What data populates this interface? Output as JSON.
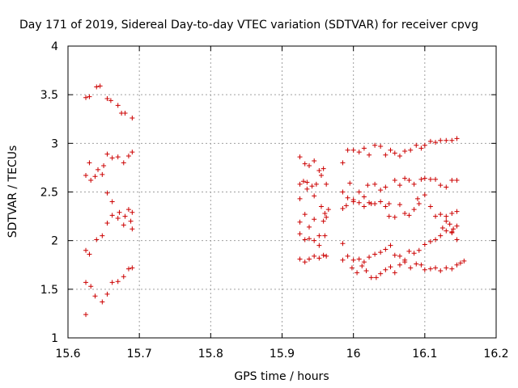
{
  "chart_data": {
    "type": "scatter",
    "title": "Day 171 of 2019, Sidereal Day-to-day VTEC variation (SDTVAR) for receiver cpvg",
    "xlabel": "GPS time / hours",
    "ylabel": "SDTVAR / TECUs",
    "xlim": [
      15.6,
      16.2
    ],
    "ylim": [
      1,
      4
    ],
    "xticks": [
      15.6,
      15.7,
      15.8,
      15.9,
      16.0,
      16.1,
      16.2
    ],
    "xtick_labels": [
      "15.6",
      "15.7",
      "15.8",
      "15.9",
      "16",
      "16.1",
      "16.2"
    ],
    "yticks": [
      1,
      1.5,
      2,
      2.5,
      3,
      3.5,
      4
    ],
    "ytick_labels": [
      "1",
      "1.5",
      "2",
      "2.5",
      "3",
      "3.5",
      "4"
    ],
    "grid": true,
    "marker": "+",
    "color": "#cc0000",
    "series": [
      {
        "name": "SDTVAR",
        "points": [
          [
            15.625,
            3.47
          ],
          [
            15.63,
            3.48
          ],
          [
            15.64,
            3.58
          ],
          [
            15.645,
            3.59
          ],
          [
            15.655,
            3.46
          ],
          [
            15.66,
            3.44
          ],
          [
            15.67,
            3.39
          ],
          [
            15.675,
            3.31
          ],
          [
            15.68,
            3.31
          ],
          [
            15.69,
            3.26
          ],
          [
            15.625,
            2.67
          ],
          [
            15.63,
            2.8
          ],
          [
            15.632,
            2.62
          ],
          [
            15.638,
            2.66
          ],
          [
            15.642,
            2.73
          ],
          [
            15.648,
            2.68
          ],
          [
            15.65,
            2.77
          ],
          [
            15.655,
            2.89
          ],
          [
            15.662,
            2.85
          ],
          [
            15.67,
            2.86
          ],
          [
            15.678,
            2.8
          ],
          [
            15.685,
            2.87
          ],
          [
            15.69,
            2.91
          ],
          [
            15.655,
            2.49
          ],
          [
            15.662,
            2.4
          ],
          [
            15.655,
            2.18
          ],
          [
            15.662,
            2.26
          ],
          [
            15.67,
            2.23
          ],
          [
            15.672,
            2.29
          ],
          [
            15.678,
            2.16
          ],
          [
            15.68,
            2.25
          ],
          [
            15.685,
            2.32
          ],
          [
            15.688,
            2.2
          ],
          [
            15.69,
            2.29
          ],
          [
            15.69,
            2.12
          ],
          [
            15.64,
            2.01
          ],
          [
            15.648,
            2.05
          ],
          [
            15.625,
            1.9
          ],
          [
            15.63,
            1.86
          ],
          [
            15.625,
            1.57
          ],
          [
            15.632,
            1.53
          ],
          [
            15.638,
            1.43
          ],
          [
            15.648,
            1.37
          ],
          [
            15.655,
            1.45
          ],
          [
            15.662,
            1.57
          ],
          [
            15.67,
            1.58
          ],
          [
            15.678,
            1.63
          ],
          [
            15.685,
            1.71
          ],
          [
            15.69,
            1.72
          ],
          [
            15.625,
            1.24
          ],
          [
            15.925,
            2.86
          ],
          [
            15.932,
            2.79
          ],
          [
            15.938,
            2.77
          ],
          [
            15.945,
            2.82
          ],
          [
            15.952,
            2.72
          ],
          [
            15.958,
            2.74
          ],
          [
            15.985,
            2.8
          ],
          [
            15.992,
            2.93
          ],
          [
            16.0,
            2.93
          ],
          [
            16.008,
            2.91
          ],
          [
            16.015,
            2.95
          ],
          [
            16.022,
            2.88
          ],
          [
            16.03,
            2.98
          ],
          [
            16.038,
            2.97
          ],
          [
            16.045,
            2.88
          ],
          [
            16.052,
            2.93
          ],
          [
            16.058,
            2.9
          ],
          [
            16.065,
            2.87
          ],
          [
            16.072,
            2.92
          ],
          [
            16.08,
            2.93
          ],
          [
            16.088,
            2.98
          ],
          [
            16.095,
            2.95
          ],
          [
            16.1,
            2.98
          ],
          [
            16.108,
            3.02
          ],
          [
            16.115,
            3.01
          ],
          [
            16.122,
            3.03
          ],
          [
            16.13,
            3.03
          ],
          [
            16.138,
            3.03
          ],
          [
            16.145,
            3.05
          ],
          [
            15.925,
            2.58
          ],
          [
            15.93,
            2.61
          ],
          [
            15.935,
            2.6
          ],
          [
            15.942,
            2.56
          ],
          [
            15.948,
            2.58
          ],
          [
            15.955,
            2.67
          ],
          [
            15.962,
            2.58
          ],
          [
            15.925,
            2.43
          ],
          [
            15.935,
            2.53
          ],
          [
            15.945,
            2.46
          ],
          [
            15.955,
            2.35
          ],
          [
            15.96,
            2.28
          ],
          [
            15.965,
            2.32
          ],
          [
            15.985,
            2.5
          ],
          [
            15.992,
            2.44
          ],
          [
            15.995,
            2.59
          ],
          [
            16.0,
            2.42
          ],
          [
            16.008,
            2.5
          ],
          [
            16.015,
            2.45
          ],
          [
            16.02,
            2.57
          ],
          [
            16.025,
            2.38
          ],
          [
            16.03,
            2.58
          ],
          [
            16.038,
            2.52
          ],
          [
            16.045,
            2.55
          ],
          [
            16.05,
            2.38
          ],
          [
            16.058,
            2.62
          ],
          [
            16.065,
            2.57
          ],
          [
            16.072,
            2.64
          ],
          [
            16.078,
            2.62
          ],
          [
            16.085,
            2.58
          ],
          [
            16.09,
            2.43
          ],
          [
            16.095,
            2.63
          ],
          [
            16.1,
            2.64
          ],
          [
            16.108,
            2.63
          ],
          [
            16.115,
            2.63
          ],
          [
            16.122,
            2.57
          ],
          [
            16.13,
            2.55
          ],
          [
            16.138,
            2.62
          ],
          [
            16.145,
            2.62
          ],
          [
            15.985,
            2.33
          ],
          [
            15.99,
            2.36
          ],
          [
            16.0,
            2.4
          ],
          [
            16.008,
            2.39
          ],
          [
            16.015,
            2.35
          ],
          [
            16.022,
            2.39
          ],
          [
            16.03,
            2.38
          ],
          [
            16.038,
            2.4
          ],
          [
            16.045,
            2.35
          ],
          [
            16.05,
            2.25
          ],
          [
            16.058,
            2.24
          ],
          [
            16.065,
            2.37
          ],
          [
            16.072,
            2.28
          ],
          [
            16.078,
            2.26
          ],
          [
            16.085,
            2.32
          ],
          [
            16.092,
            2.38
          ],
          [
            16.1,
            2.47
          ],
          [
            16.108,
            2.35
          ],
          [
            16.115,
            2.25
          ],
          [
            16.122,
            2.27
          ],
          [
            16.13,
            2.25
          ],
          [
            16.138,
            2.28
          ],
          [
            16.145,
            2.3
          ],
          [
            16.125,
            2.13
          ],
          [
            16.13,
            2.2
          ],
          [
            16.135,
            2.17
          ],
          [
            16.14,
            2.12
          ],
          [
            16.145,
            2.15
          ],
          [
            16.138,
            2.09
          ],
          [
            15.925,
            2.19
          ],
          [
            15.932,
            2.27
          ],
          [
            15.938,
            2.14
          ],
          [
            15.945,
            2.22
          ],
          [
            15.952,
            2.05
          ],
          [
            15.958,
            2.2
          ],
          [
            15.962,
            2.24
          ],
          [
            15.925,
            2.07
          ],
          [
            15.932,
            2.01
          ],
          [
            15.938,
            2.02
          ],
          [
            15.945,
            2.0
          ],
          [
            15.952,
            1.95
          ],
          [
            15.96,
            2.05
          ],
          [
            15.985,
            1.97
          ],
          [
            16.0,
            1.8
          ],
          [
            16.008,
            1.81
          ],
          [
            16.015,
            1.78
          ],
          [
            16.022,
            1.83
          ],
          [
            16.03,
            1.86
          ],
          [
            16.038,
            1.88
          ],
          [
            16.045,
            1.91
          ],
          [
            16.052,
            1.95
          ],
          [
            16.058,
            1.85
          ],
          [
            16.065,
            1.84
          ],
          [
            16.072,
            1.8
          ],
          [
            16.078,
            1.89
          ],
          [
            16.085,
            1.87
          ],
          [
            16.092,
            1.9
          ],
          [
            16.1,
            1.96
          ],
          [
            16.108,
            1.99
          ],
          [
            16.115,
            2.01
          ],
          [
            16.122,
            2.05
          ],
          [
            16.13,
            2.1
          ],
          [
            16.138,
            2.08
          ],
          [
            16.145,
            2.01
          ],
          [
            15.925,
            1.81
          ],
          [
            15.932,
            1.78
          ],
          [
            15.938,
            1.81
          ],
          [
            15.945,
            1.84
          ],
          [
            15.952,
            1.82
          ],
          [
            15.958,
            1.85
          ],
          [
            15.962,
            1.84
          ],
          [
            15.985,
            1.8
          ],
          [
            15.992,
            1.84
          ],
          [
            15.998,
            1.72
          ],
          [
            16.005,
            1.67
          ],
          [
            16.012,
            1.74
          ],
          [
            16.018,
            1.69
          ],
          [
            16.025,
            1.62
          ],
          [
            16.032,
            1.62
          ],
          [
            16.038,
            1.66
          ],
          [
            16.045,
            1.7
          ],
          [
            16.052,
            1.73
          ],
          [
            16.058,
            1.67
          ],
          [
            16.065,
            1.75
          ],
          [
            16.072,
            1.78
          ],
          [
            16.08,
            1.72
          ],
          [
            16.088,
            1.76
          ],
          [
            16.095,
            1.75
          ],
          [
            16.1,
            1.7
          ],
          [
            16.108,
            1.71
          ],
          [
            16.115,
            1.72
          ],
          [
            16.122,
            1.69
          ],
          [
            16.13,
            1.72
          ],
          [
            16.138,
            1.71
          ],
          [
            16.145,
            1.75
          ],
          [
            16.15,
            1.77
          ],
          [
            16.155,
            1.79
          ]
        ]
      }
    ]
  }
}
